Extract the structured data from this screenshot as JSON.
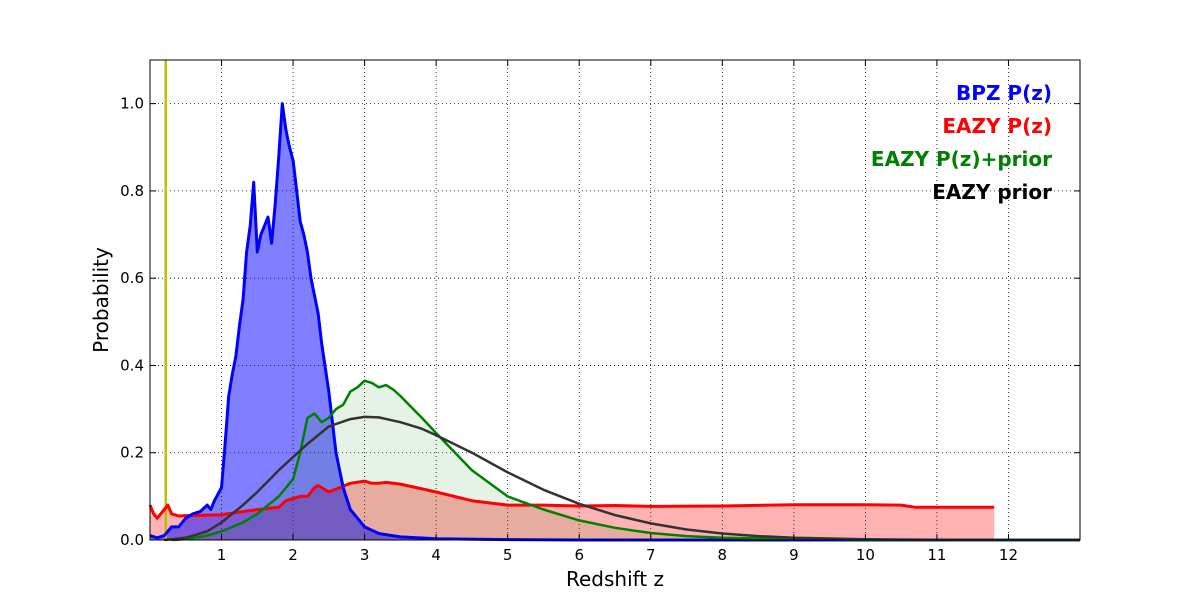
{
  "chart_data": {
    "type": "area",
    "xlabel": "Redshift z",
    "ylabel": "Probability",
    "xlim": [
      0,
      13
    ],
    "ylim": [
      0,
      1.1
    ],
    "grid": true,
    "legend_placement": "top-right",
    "xticks": [
      1,
      2,
      3,
      4,
      5,
      6,
      7,
      8,
      9,
      10,
      11,
      12
    ],
    "yticks": [
      0.0,
      0.2,
      0.4,
      0.6,
      0.8,
      1.0
    ],
    "ytick_labels": [
      "0.0",
      "0.2",
      "0.4",
      "0.6",
      "0.8",
      "1.0"
    ],
    "vertical_marker": {
      "x": 0.22,
      "color": "#bfbf00"
    },
    "series": [
      {
        "name": "BPZ P(z)",
        "color": "#0000ff",
        "fill_color": "#0000ff",
        "fill_opacity": 0.5,
        "x": [
          0,
          0.1,
          0.2,
          0.3,
          0.4,
          0.5,
          0.6,
          0.7,
          0.8,
          0.85,
          0.9,
          1.0,
          1.05,
          1.1,
          1.15,
          1.2,
          1.25,
          1.3,
          1.35,
          1.4,
          1.45,
          1.5,
          1.55,
          1.6,
          1.65,
          1.7,
          1.75,
          1.8,
          1.85,
          1.9,
          1.95,
          2.0,
          2.05,
          2.1,
          2.15,
          2.2,
          2.25,
          2.3,
          2.35,
          2.4,
          2.5,
          2.6,
          2.7,
          2.8,
          2.9,
          3.0,
          3.2,
          3.5,
          4.0,
          5.0,
          6.0,
          13.0
        ],
        "y": [
          0.01,
          0.005,
          0.01,
          0.03,
          0.03,
          0.05,
          0.06,
          0.065,
          0.08,
          0.07,
          0.09,
          0.12,
          0.22,
          0.33,
          0.38,
          0.42,
          0.49,
          0.55,
          0.66,
          0.72,
          0.82,
          0.66,
          0.7,
          0.72,
          0.74,
          0.68,
          0.77,
          0.88,
          1.0,
          0.94,
          0.9,
          0.87,
          0.8,
          0.73,
          0.7,
          0.66,
          0.6,
          0.56,
          0.52,
          0.45,
          0.34,
          0.2,
          0.12,
          0.07,
          0.05,
          0.03,
          0.015,
          0.007,
          0.003,
          0.001,
          0.0,
          0.0
        ]
      },
      {
        "name": "EAZY P(z)",
        "color": "#ff0000",
        "fill_color": "#ff0000",
        "fill_opacity": 0.3,
        "x": [
          0,
          0.05,
          0.1,
          0.2,
          0.25,
          0.3,
          0.4,
          0.5,
          0.8,
          1.0,
          1.5,
          1.8,
          1.9,
          2.1,
          2.2,
          2.3,
          2.35,
          2.4,
          2.5,
          2.8,
          3.0,
          3.1,
          3.2,
          3.3,
          3.5,
          4.0,
          4.5,
          5.0,
          5.5,
          6.0,
          6.5,
          7.0,
          8.0,
          9.0,
          9.5,
          10.0,
          10.5,
          10.7,
          11.0,
          11.5,
          11.8
        ],
        "y": [
          0.08,
          0.06,
          0.05,
          0.07,
          0.08,
          0.06,
          0.055,
          0.056,
          0.057,
          0.058,
          0.07,
          0.075,
          0.09,
          0.1,
          0.1,
          0.12,
          0.125,
          0.12,
          0.11,
          0.13,
          0.135,
          0.13,
          0.13,
          0.132,
          0.128,
          0.11,
          0.09,
          0.08,
          0.08,
          0.078,
          0.079,
          0.077,
          0.078,
          0.081,
          0.081,
          0.081,
          0.08,
          0.075,
          0.075,
          0.075,
          0.075
        ]
      },
      {
        "name": "EAZY P(z)+prior",
        "color": "#008000",
        "fill_color": "#008000",
        "fill_opacity": 0.1,
        "x": [
          0.3,
          0.5,
          0.8,
          1.0,
          1.3,
          1.5,
          1.8,
          2.0,
          2.1,
          2.2,
          2.3,
          2.4,
          2.5,
          2.6,
          2.7,
          2.8,
          2.9,
          3.0,
          3.1,
          3.2,
          3.3,
          3.4,
          3.5,
          3.8,
          4.0,
          4.5,
          5.0,
          5.5,
          6.0,
          6.5,
          7.0,
          7.5,
          8.0,
          9.0,
          10.0,
          13.0
        ],
        "y": [
          0.0,
          0.002,
          0.01,
          0.02,
          0.04,
          0.06,
          0.1,
          0.14,
          0.2,
          0.28,
          0.29,
          0.27,
          0.28,
          0.3,
          0.31,
          0.34,
          0.35,
          0.365,
          0.36,
          0.35,
          0.355,
          0.345,
          0.33,
          0.28,
          0.245,
          0.16,
          0.1,
          0.07,
          0.045,
          0.028,
          0.016,
          0.009,
          0.005,
          0.002,
          0.0005,
          0.0
        ]
      },
      {
        "name": "EAZY prior",
        "color": "#333333",
        "fill_color": null,
        "fill_opacity": 0,
        "x": [
          0.2,
          0.5,
          0.8,
          1.0,
          1.3,
          1.5,
          1.8,
          2.0,
          2.2,
          2.5,
          2.8,
          3.0,
          3.2,
          3.5,
          3.8,
          4.0,
          4.5,
          5.0,
          5.5,
          6.0,
          6.5,
          7.0,
          7.5,
          8.0,
          8.5,
          9.0,
          10.0,
          11.0,
          12.0,
          13.0
        ],
        "y": [
          0.0,
          0.005,
          0.02,
          0.04,
          0.08,
          0.11,
          0.16,
          0.19,
          0.22,
          0.26,
          0.277,
          0.282,
          0.281,
          0.27,
          0.255,
          0.24,
          0.2,
          0.155,
          0.115,
          0.083,
          0.057,
          0.038,
          0.024,
          0.015,
          0.009,
          0.005,
          0.0015,
          0.0004,
          0.0001,
          0.0
        ]
      }
    ]
  }
}
